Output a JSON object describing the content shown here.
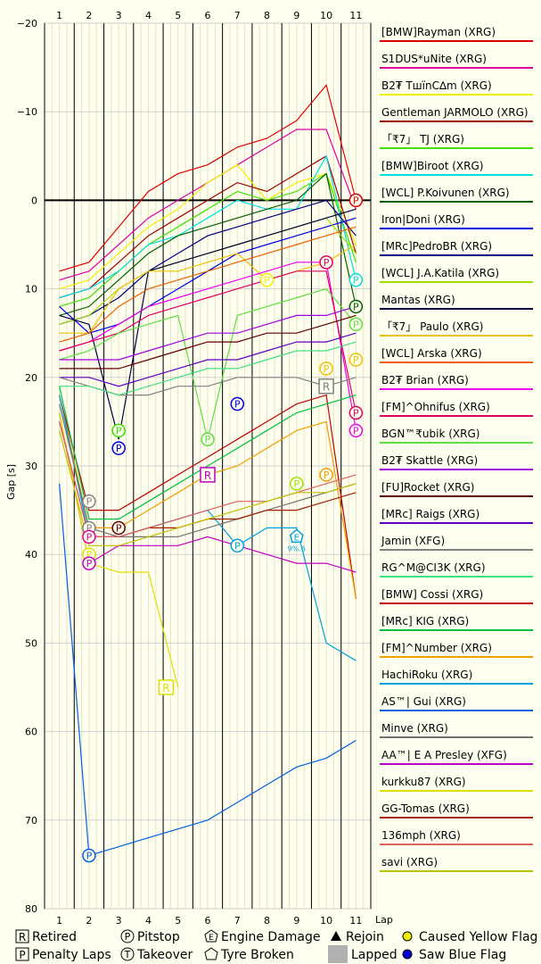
{
  "chart_data": {
    "type": "line",
    "title": "",
    "xlabel": "Lap",
    "ylabel": "Gap [s]",
    "x": [
      1,
      2,
      3,
      4,
      5,
      6,
      7,
      8,
      9,
      10,
      11
    ],
    "xlim": [
      0.5,
      11.5
    ],
    "ylim": [
      -20,
      80
    ],
    "y_ticks": [
      -20,
      -10,
      0,
      10,
      20,
      30,
      40,
      50,
      60,
      70,
      80
    ],
    "y_tick_labels": [
      "−20",
      "−10",
      "0",
      "10",
      "20",
      "30",
      "40",
      "50",
      "60",
      "70",
      "80"
    ],
    "grid": true,
    "legend_position": "right",
    "series": [
      {
        "name": "[BMW]Rayman (XRG)",
        "color": "#e00000",
        "values": [
          8,
          7,
          3,
          -1,
          -3,
          -4,
          -6,
          -7,
          -9,
          -13,
          0
        ]
      },
      {
        "name": "S1DUS*uNite (XRG)",
        "color": "#e000a0",
        "values": [
          9,
          8,
          5,
          2,
          0,
          -2,
          -4,
          -6,
          -8,
          -8,
          1
        ]
      },
      {
        "name": "B2₮ TшїnC∆m (XRG)",
        "color": "#f0f000",
        "values": [
          10,
          9,
          6,
          3,
          1,
          -2,
          -4,
          0,
          -2,
          -3,
          5
        ]
      },
      {
        "name": "Gentleman JARMOLO (XRG)",
        "color": "#a00000",
        "values": [
          11,
          10,
          7,
          4,
          2,
          0,
          -2,
          -1,
          -3,
          -5,
          6
        ]
      },
      {
        "name": "「₹7」 TJ (XRG)",
        "color": "#40e000",
        "values": [
          12,
          11,
          8,
          5,
          3,
          1,
          -1,
          0,
          -1,
          -3,
          7
        ]
      },
      {
        "name": "[BMW]Biroot (XRG)",
        "color": "#00e0e0",
        "values": [
          11,
          10,
          8,
          5,
          4,
          2,
          0,
          1,
          1,
          -5,
          9
        ]
      },
      {
        "name": "[WCL] P.Koivunen (XRG)",
        "color": "#006000",
        "values": [
          13,
          12,
          9,
          6,
          4,
          3,
          2,
          1,
          0,
          -3,
          12
        ]
      },
      {
        "name": "Iron|Doni (XRG)",
        "color": "#0000e0",
        "values": [
          12,
          15,
          14,
          12,
          10,
          8,
          6,
          5,
          4,
          3,
          2
        ]
      },
      {
        "name": "[MRc]PedroBR (XRG)",
        "color": "#000080",
        "values": [
          14,
          13,
          11,
          8,
          6,
          4,
          3,
          2,
          1,
          0,
          4
        ]
      },
      {
        "name": "[WCL] J.A.Katila (XRG)",
        "color": "#a0e000",
        "values": [
          14,
          13,
          10,
          8,
          7,
          6,
          5,
          4,
          3,
          2,
          6
        ]
      },
      {
        "name": "Mantas (XRG)",
        "color": "#000040",
        "values": [
          13,
          14,
          27,
          8,
          7,
          6,
          5,
          4,
          3,
          2,
          1
        ]
      },
      {
        "name": "「₹7」 Paulo (XRG)",
        "color": "#f0c000",
        "values": [
          15,
          15,
          10,
          8,
          8,
          7,
          6,
          9,
          8,
          7,
          5
        ]
      },
      {
        "name": "[WCL] Arska (XRG)",
        "color": "#f06000",
        "values": [
          16,
          15,
          12,
          10,
          9,
          8,
          7,
          6,
          5,
          4,
          3
        ]
      },
      {
        "name": "B2₮ Brian (XRG)",
        "color": "#f000f0",
        "values": [
          17,
          16,
          14,
          12,
          11,
          10,
          9,
          8,
          7,
          7,
          26
        ]
      },
      {
        "name": "[FM]^Ohnifus (XRG)",
        "color": "#e00060",
        "values": [
          17,
          16,
          15,
          13,
          12,
          11,
          10,
          9,
          8,
          8,
          24
        ]
      },
      {
        "name": "BGN™₹ubik (XRG)",
        "color": "#60e040",
        "values": [
          18,
          17,
          15,
          14,
          13,
          27,
          13,
          12,
          11,
          10,
          14
        ]
      },
      {
        "name": "B2₮ Skattle (XRG)",
        "color": "#a000e0",
        "values": [
          18,
          18,
          18,
          17,
          16,
          15,
          15,
          14,
          13,
          13,
          12
        ]
      },
      {
        "name": "[FU]Rocket (XRG)",
        "color": "#600000",
        "values": [
          19,
          19,
          19,
          18,
          17,
          16,
          16,
          15,
          15,
          14,
          13
        ]
      },
      {
        "name": "[MRc] Raigs (XRG)",
        "color": "#6000c0",
        "values": [
          20,
          20,
          21,
          20,
          19,
          18,
          18,
          17,
          16,
          16,
          15
        ]
      },
      {
        "name": "Jamin (XFG)",
        "color": "#808080",
        "values": [
          20,
          21,
          22,
          22,
          21,
          21,
          20,
          20,
          20,
          21,
          20
        ]
      },
      {
        "name": "RG^M@CI3K (XRG)",
        "color": "#40e080",
        "values": [
          21,
          21,
          22,
          21,
          20,
          19,
          19,
          18,
          17,
          17,
          16
        ]
      },
      {
        "name": "[BMW] Cossi (XRG)",
        "color": "#c00000",
        "values": [
          22,
          35,
          35,
          33,
          31,
          29,
          27,
          25,
          23,
          22,
          45
        ]
      },
      {
        "name": "[MRc] KIG (XRG)",
        "color": "#00c040",
        "values": [
          21,
          36,
          36,
          34,
          32,
          30,
          28,
          26,
          24,
          23,
          22
        ]
      },
      {
        "name": "[FM]^Number (XRG)",
        "color": "#f0a000",
        "values": [
          22,
          37,
          37,
          35,
          33,
          31,
          30,
          28,
          26,
          25,
          45
        ]
      },
      {
        "name": "HachiRoku (XRG)",
        "color": "#00a0e0",
        "values": [
          22,
          38,
          38,
          37,
          36,
          35,
          39,
          37,
          37,
          50,
          52
        ]
      },
      {
        "name": "AS™| Gui (XRG)",
        "color": "#0060e0",
        "values": [
          32,
          74,
          73,
          72,
          71,
          70,
          68,
          66,
          64,
          63,
          61
        ]
      },
      {
        "name": "Minve (XRG)",
        "color": "#707070",
        "values": [
          23,
          37,
          38,
          38,
          38,
          37,
          36,
          35,
          34,
          33,
          32
        ]
      },
      {
        "name": "AA™| E A Presley (XFG)",
        "color": "#c000c0",
        "values": [
          24,
          41,
          39,
          39,
          39,
          38,
          39,
          40,
          41,
          41,
          42
        ]
      },
      {
        "name": "kurkku87 (XRG)",
        "color": "#e0e000",
        "values": [
          24,
          41,
          42,
          42,
          55,
          null,
          null,
          null,
          null,
          null,
          null
        ]
      },
      {
        "name": "GG-Tomas (XRG)",
        "color": "#a02000",
        "values": [
          25,
          38,
          38,
          37,
          37,
          36,
          36,
          35,
          35,
          34,
          33
        ]
      },
      {
        "name": "136mph (XRG)",
        "color": "#e06060",
        "values": [
          25,
          38,
          38,
          37,
          36,
          35,
          34,
          34,
          33,
          32,
          31
        ]
      },
      {
        "name": "savi (XRG)",
        "color": "#c0c000",
        "values": [
          26,
          39,
          39,
          38,
          37,
          36,
          35,
          34,
          33,
          33,
          32
        ]
      }
    ],
    "markers": [
      {
        "type": "P",
        "series": 0,
        "x": 11,
        "y": 0,
        "color": "#e00000"
      },
      {
        "type": "P",
        "series": 14,
        "x": 10,
        "y": 7,
        "color": "#e00060"
      },
      {
        "type": "P",
        "series": 6,
        "x": 11,
        "y": 12,
        "color": "#006000"
      },
      {
        "type": "P",
        "series": 5,
        "x": 11,
        "y": 9,
        "color": "#00e0e0"
      },
      {
        "type": "P",
        "series": 15,
        "x": 11,
        "y": 14,
        "color": "#60e040"
      },
      {
        "type": "P",
        "series": 11,
        "x": 11,
        "y": 18,
        "color": "#f0c000"
      },
      {
        "type": "P",
        "series": 11,
        "x": 10,
        "y": 19,
        "color": "#f0c000"
      },
      {
        "type": "P",
        "series": 14,
        "x": 11,
        "y": 24,
        "color": "#e00060"
      },
      {
        "type": "P",
        "series": 13,
        "x": 11,
        "y": 26,
        "color": "#f000f0"
      },
      {
        "type": "P",
        "series": 7,
        "x": 7,
        "y": 23,
        "color": "#0000e0"
      },
      {
        "type": "P",
        "series": 15,
        "x": 6,
        "y": 27,
        "color": "#60e040"
      },
      {
        "type": "P",
        "series": 10,
        "x": 3,
        "y": 26,
        "color": "#40e000"
      },
      {
        "type": "P",
        "series": 10,
        "x": 3,
        "y": 28,
        "color": "#0000e0"
      },
      {
        "type": "P",
        "series": 25,
        "x": 2,
        "y": 74,
        "color": "#0060e0"
      },
      {
        "type": "P",
        "series": 26,
        "x": 2,
        "y": 34,
        "color": "#808080"
      },
      {
        "type": "P",
        "series": 26,
        "x": 2,
        "y": 37,
        "color": "#808080"
      },
      {
        "type": "P",
        "series": 27,
        "x": 2,
        "y": 38,
        "color": "#e000a0"
      },
      {
        "type": "P",
        "series": 28,
        "x": 2,
        "y": 40,
        "color": "#e0e000"
      },
      {
        "type": "P",
        "series": 27,
        "x": 2,
        "y": 41,
        "color": "#c000c0"
      },
      {
        "type": "P",
        "series": 17,
        "x": 3,
        "y": 37,
        "color": "#600000"
      },
      {
        "type": "P",
        "series": 24,
        "x": 7,
        "y": 39,
        "color": "#00a0e0"
      },
      {
        "type": "P",
        "series": 16,
        "x": 9,
        "y": 32,
        "color": "#a0e000"
      },
      {
        "type": "P",
        "series": 23,
        "x": 10,
        "y": 31,
        "color": "#f0a000"
      },
      {
        "type": "P",
        "series": 11,
        "x": 8,
        "y": 9,
        "color": "#f0f000"
      },
      {
        "type": "R",
        "series": 28,
        "x": 4.6,
        "y": 55,
        "color": "#e0e000"
      },
      {
        "type": "R",
        "series": 13,
        "x": 6,
        "y": 31,
        "color": "#c000c0"
      },
      {
        "type": "R",
        "series": 19,
        "x": 10,
        "y": 21,
        "color": "#808080"
      },
      {
        "type": "E",
        "series": 24,
        "x": 9,
        "y": 38,
        "color": "#00a0e0",
        "label": "9%.6"
      }
    ],
    "key": [
      {
        "symbol": "R",
        "label": "Retired"
      },
      {
        "symbol": "P",
        "label": "Penalty Laps"
      },
      {
        "symbol": "Pc",
        "label": "Pitstop"
      },
      {
        "symbol": "T",
        "label": "Takeover"
      },
      {
        "symbol": "E",
        "label": "Engine Damage"
      },
      {
        "symbol": "Tyre",
        "label": "Tyre Broken"
      },
      {
        "symbol": "tri",
        "label": "Rejoin"
      },
      {
        "symbol": "lapped",
        "label": "Lapped"
      },
      {
        "symbol": "yellow",
        "label": "Caused Yellow Flag"
      },
      {
        "symbol": "blue",
        "label": "Saw Blue Flag"
      }
    ]
  }
}
